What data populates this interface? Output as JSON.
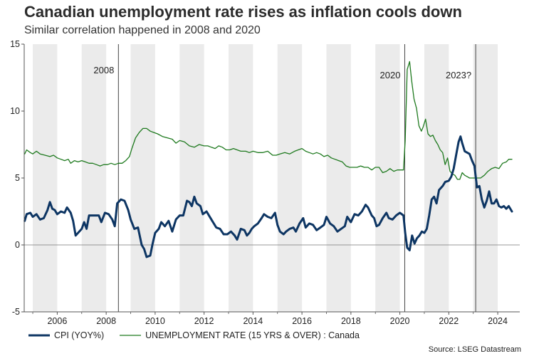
{
  "title": "Canadian unemployment rate rises as inflation cools down",
  "subtitle": "Similar correlation happened in 2008 and 2020",
  "source": "Source: LSEG Datastream",
  "colors": {
    "cpi": "#0d3563",
    "unemployment": "#1f7a1f",
    "band": "#ebebeb",
    "axis": "#555555"
  },
  "chart_data": {
    "type": "line",
    "xlim": [
      2004.65,
      2024.9
    ],
    "ylim": [
      -5,
      15
    ],
    "yticks": [
      -5,
      0,
      5,
      10,
      15
    ],
    "xticks": [
      2006,
      2008,
      2010,
      2012,
      2014,
      2016,
      2018,
      2020,
      2022,
      2024
    ],
    "ytick_labels": [
      "-5",
      "0",
      "5",
      "10",
      "15"
    ],
    "xtick_labels": [
      "2006",
      "2008",
      "2010",
      "2012",
      "2014",
      "2016",
      "2018",
      "2020",
      "2022",
      "2024"
    ],
    "vlines": [
      {
        "x": 2008.5,
        "label": "2008"
      },
      {
        "x": 2020.2,
        "label": "2020"
      },
      {
        "x": 2023.1,
        "label": "2023?"
      }
    ],
    "series": [
      {
        "name": "CPI (YOY%)",
        "points": [
          [
            2004.67,
            1.8
          ],
          [
            2004.75,
            2.3
          ],
          [
            2004.9,
            2.4
          ],
          [
            2005.0,
            2.1
          ],
          [
            2005.15,
            2.3
          ],
          [
            2005.3,
            1.9
          ],
          [
            2005.45,
            2.0
          ],
          [
            2005.6,
            2.6
          ],
          [
            2005.7,
            3.2
          ],
          [
            2005.8,
            2.7
          ],
          [
            2005.9,
            2.6
          ],
          [
            2006.0,
            2.3
          ],
          [
            2006.15,
            2.5
          ],
          [
            2006.3,
            2.4
          ],
          [
            2006.4,
            2.8
          ],
          [
            2006.55,
            2.4
          ],
          [
            2006.65,
            1.8
          ],
          [
            2006.75,
            0.7
          ],
          [
            2006.85,
            0.9
          ],
          [
            2007.0,
            1.2
          ],
          [
            2007.1,
            1.7
          ],
          [
            2007.2,
            1.2
          ],
          [
            2007.3,
            2.2
          ],
          [
            2007.5,
            2.2
          ],
          [
            2007.7,
            2.2
          ],
          [
            2007.8,
            1.7
          ],
          [
            2007.95,
            2.4
          ],
          [
            2008.1,
            2.3
          ],
          [
            2008.25,
            1.9
          ],
          [
            2008.35,
            1.4
          ],
          [
            2008.45,
            3.1
          ],
          [
            2008.6,
            3.4
          ],
          [
            2008.75,
            3.3
          ],
          [
            2008.9,
            2.6
          ],
          [
            2009.0,
            1.9
          ],
          [
            2009.15,
            1.2
          ],
          [
            2009.3,
            1.3
          ],
          [
            2009.45,
            0.0
          ],
          [
            2009.55,
            -0.3
          ],
          [
            2009.65,
            -0.9
          ],
          [
            2009.8,
            -0.8
          ],
          [
            2009.9,
            0.1
          ],
          [
            2010.0,
            0.9
          ],
          [
            2010.15,
            1.2
          ],
          [
            2010.25,
            1.7
          ],
          [
            2010.4,
            1.4
          ],
          [
            2010.55,
            1.8
          ],
          [
            2010.7,
            1.0
          ],
          [
            2010.85,
            1.9
          ],
          [
            2011.0,
            2.2
          ],
          [
            2011.15,
            2.2
          ],
          [
            2011.3,
            3.3
          ],
          [
            2011.4,
            3.2
          ],
          [
            2011.5,
            2.9
          ],
          [
            2011.6,
            3.6
          ],
          [
            2011.7,
            3.1
          ],
          [
            2011.85,
            2.9
          ],
          [
            2011.95,
            2.3
          ],
          [
            2012.1,
            2.5
          ],
          [
            2012.3,
            1.9
          ],
          [
            2012.5,
            1.3
          ],
          [
            2012.65,
            1.2
          ],
          [
            2012.8,
            0.8
          ],
          [
            2012.95,
            0.8
          ],
          [
            2013.1,
            1.0
          ],
          [
            2013.25,
            0.7
          ],
          [
            2013.35,
            0.4
          ],
          [
            2013.5,
            1.2
          ],
          [
            2013.65,
            1.1
          ],
          [
            2013.75,
            0.7
          ],
          [
            2013.85,
            0.9
          ],
          [
            2013.95,
            1.2
          ],
          [
            2014.05,
            1.4
          ],
          [
            2014.2,
            1.6
          ],
          [
            2014.35,
            2.0
          ],
          [
            2014.45,
            2.3
          ],
          [
            2014.6,
            2.1
          ],
          [
            2014.75,
            2.0
          ],
          [
            2014.9,
            2.4
          ],
          [
            2015.0,
            1.5
          ],
          [
            2015.1,
            1.0
          ],
          [
            2015.25,
            0.8
          ],
          [
            2015.35,
            1.0
          ],
          [
            2015.5,
            1.2
          ],
          [
            2015.65,
            1.3
          ],
          [
            2015.75,
            1.0
          ],
          [
            2015.9,
            1.6
          ],
          [
            2016.05,
            2.0
          ],
          [
            2016.15,
            1.3
          ],
          [
            2016.3,
            1.6
          ],
          [
            2016.45,
            1.5
          ],
          [
            2016.6,
            1.1
          ],
          [
            2016.75,
            1.3
          ],
          [
            2016.9,
            1.5
          ],
          [
            2017.0,
            2.1
          ],
          [
            2017.15,
            1.6
          ],
          [
            2017.3,
            1.4
          ],
          [
            2017.45,
            1.0
          ],
          [
            2017.6,
            1.2
          ],
          [
            2017.75,
            1.4
          ],
          [
            2017.85,
            2.1
          ],
          [
            2018.0,
            1.7
          ],
          [
            2018.15,
            2.3
          ],
          [
            2018.3,
            2.2
          ],
          [
            2018.45,
            2.5
          ],
          [
            2018.6,
            3.0
          ],
          [
            2018.7,
            2.8
          ],
          [
            2018.85,
            2.2
          ],
          [
            2018.95,
            2.0
          ],
          [
            2019.05,
            1.4
          ],
          [
            2019.15,
            1.5
          ],
          [
            2019.3,
            2.0
          ],
          [
            2019.45,
            2.4
          ],
          [
            2019.55,
            2.0
          ],
          [
            2019.7,
            1.9
          ],
          [
            2019.85,
            2.2
          ],
          [
            2020.0,
            2.4
          ],
          [
            2020.15,
            2.2
          ],
          [
            2020.22,
            0.9
          ],
          [
            2020.3,
            -0.2
          ],
          [
            2020.4,
            -0.4
          ],
          [
            2020.5,
            0.7
          ],
          [
            2020.6,
            0.1
          ],
          [
            2020.7,
            0.5
          ],
          [
            2020.8,
            0.7
          ],
          [
            2020.9,
            1.0
          ],
          [
            2021.0,
            0.9
          ],
          [
            2021.1,
            1.2
          ],
          [
            2021.2,
            2.2
          ],
          [
            2021.3,
            3.4
          ],
          [
            2021.4,
            3.6
          ],
          [
            2021.5,
            3.1
          ],
          [
            2021.6,
            4.1
          ],
          [
            2021.75,
            4.4
          ],
          [
            2021.85,
            4.7
          ],
          [
            2022.0,
            4.8
          ],
          [
            2022.1,
            5.1
          ],
          [
            2022.2,
            5.7
          ],
          [
            2022.3,
            6.7
          ],
          [
            2022.4,
            7.7
          ],
          [
            2022.48,
            8.1
          ],
          [
            2022.55,
            7.6
          ],
          [
            2022.65,
            7.0
          ],
          [
            2022.75,
            6.9
          ],
          [
            2022.85,
            6.8
          ],
          [
            2022.95,
            6.3
          ],
          [
            2023.05,
            5.9
          ],
          [
            2023.15,
            4.3
          ],
          [
            2023.25,
            4.4
          ],
          [
            2023.35,
            3.4
          ],
          [
            2023.45,
            2.8
          ],
          [
            2023.55,
            3.3
          ],
          [
            2023.65,
            4.0
          ],
          [
            2023.75,
            3.1
          ],
          [
            2023.85,
            3.1
          ],
          [
            2023.95,
            3.4
          ],
          [
            2024.05,
            2.9
          ],
          [
            2024.15,
            2.8
          ],
          [
            2024.25,
            2.9
          ],
          [
            2024.35,
            2.7
          ],
          [
            2024.45,
            2.9
          ],
          [
            2024.58,
            2.5
          ]
        ]
      },
      {
        "name": "UNEMPLOYMENT RATE (15 YRS & OVER) : Canada",
        "points": [
          [
            2004.67,
            6.8
          ],
          [
            2004.75,
            7.1
          ],
          [
            2004.9,
            6.9
          ],
          [
            2005.0,
            6.8
          ],
          [
            2005.15,
            7.0
          ],
          [
            2005.3,
            6.8
          ],
          [
            2005.5,
            6.7
          ],
          [
            2005.7,
            6.6
          ],
          [
            2005.85,
            6.7
          ],
          [
            2006.0,
            6.5
          ],
          [
            2006.15,
            6.4
          ],
          [
            2006.3,
            6.3
          ],
          [
            2006.45,
            6.4
          ],
          [
            2006.55,
            6.1
          ],
          [
            2006.7,
            6.3
          ],
          [
            2006.85,
            6.2
          ],
          [
            2007.0,
            6.3
          ],
          [
            2007.15,
            6.2
          ],
          [
            2007.3,
            6.1
          ],
          [
            2007.45,
            6.1
          ],
          [
            2007.6,
            6.0
          ],
          [
            2007.75,
            5.9
          ],
          [
            2007.9,
            6.0
          ],
          [
            2008.05,
            6.0
          ],
          [
            2008.2,
            6.1
          ],
          [
            2008.35,
            6.0
          ],
          [
            2008.5,
            6.1
          ],
          [
            2008.65,
            6.1
          ],
          [
            2008.8,
            6.3
          ],
          [
            2008.95,
            6.6
          ],
          [
            2009.05,
            7.2
          ],
          [
            2009.2,
            8.0
          ],
          [
            2009.35,
            8.4
          ],
          [
            2009.5,
            8.7
          ],
          [
            2009.65,
            8.7
          ],
          [
            2009.8,
            8.5
          ],
          [
            2009.95,
            8.4
          ],
          [
            2010.1,
            8.3
          ],
          [
            2010.3,
            8.1
          ],
          [
            2010.5,
            8.0
          ],
          [
            2010.7,
            7.9
          ],
          [
            2010.85,
            7.6
          ],
          [
            2011.0,
            7.8
          ],
          [
            2011.2,
            7.7
          ],
          [
            2011.4,
            7.4
          ],
          [
            2011.6,
            7.3
          ],
          [
            2011.8,
            7.5
          ],
          [
            2012.0,
            7.4
          ],
          [
            2012.15,
            7.4
          ],
          [
            2012.3,
            7.3
          ],
          [
            2012.45,
            7.2
          ],
          [
            2012.6,
            7.4
          ],
          [
            2012.75,
            7.3
          ],
          [
            2012.9,
            7.1
          ],
          [
            2013.05,
            7.1
          ],
          [
            2013.2,
            7.2
          ],
          [
            2013.35,
            7.1
          ],
          [
            2013.5,
            7.0
          ],
          [
            2013.7,
            7.0
          ],
          [
            2013.85,
            6.9
          ],
          [
            2014.0,
            7.0
          ],
          [
            2014.2,
            6.9
          ],
          [
            2014.4,
            6.9
          ],
          [
            2014.6,
            7.0
          ],
          [
            2014.8,
            6.7
          ],
          [
            2014.95,
            6.7
          ],
          [
            2015.1,
            6.8
          ],
          [
            2015.3,
            6.9
          ],
          [
            2015.5,
            6.8
          ],
          [
            2015.7,
            7.0
          ],
          [
            2015.85,
            7.1
          ],
          [
            2016.0,
            7.2
          ],
          [
            2016.15,
            7.0
          ],
          [
            2016.3,
            6.9
          ],
          [
            2016.45,
            6.8
          ],
          [
            2016.6,
            6.9
          ],
          [
            2016.75,
            6.8
          ],
          [
            2016.9,
            6.6
          ],
          [
            2017.05,
            6.7
          ],
          [
            2017.2,
            6.5
          ],
          [
            2017.35,
            6.4
          ],
          [
            2017.5,
            6.3
          ],
          [
            2017.65,
            6.2
          ],
          [
            2017.8,
            5.9
          ],
          [
            2017.95,
            5.8
          ],
          [
            2018.1,
            5.8
          ],
          [
            2018.25,
            5.8
          ],
          [
            2018.4,
            5.9
          ],
          [
            2018.55,
            5.8
          ],
          [
            2018.7,
            5.8
          ],
          [
            2018.85,
            5.6
          ],
          [
            2019.0,
            5.8
          ],
          [
            2019.15,
            5.8
          ],
          [
            2019.3,
            5.4
          ],
          [
            2019.45,
            5.5
          ],
          [
            2019.6,
            5.7
          ],
          [
            2019.75,
            5.5
          ],
          [
            2019.9,
            5.6
          ],
          [
            2020.05,
            5.6
          ],
          [
            2020.15,
            5.6
          ],
          [
            2020.22,
            7.8
          ],
          [
            2020.3,
            13.1
          ],
          [
            2020.4,
            13.7
          ],
          [
            2020.48,
            12.3
          ],
          [
            2020.58,
            10.9
          ],
          [
            2020.68,
            10.2
          ],
          [
            2020.78,
            8.9
          ],
          [
            2020.88,
            8.5
          ],
          [
            2020.95,
            8.8
          ],
          [
            2021.05,
            9.4
          ],
          [
            2021.15,
            8.3
          ],
          [
            2021.25,
            8.1
          ],
          [
            2021.35,
            8.2
          ],
          [
            2021.45,
            7.8
          ],
          [
            2021.55,
            7.5
          ],
          [
            2021.65,
            7.1
          ],
          [
            2021.75,
            6.9
          ],
          [
            2021.85,
            6.0
          ],
          [
            2021.95,
            6.5
          ],
          [
            2022.05,
            5.5
          ],
          [
            2022.15,
            5.3
          ],
          [
            2022.25,
            5.2
          ],
          [
            2022.35,
            4.9
          ],
          [
            2022.45,
            4.9
          ],
          [
            2022.55,
            5.4
          ],
          [
            2022.65,
            5.2
          ],
          [
            2022.75,
            5.1
          ],
          [
            2022.85,
            5.0
          ],
          [
            2022.95,
            5.0
          ],
          [
            2023.05,
            5.0
          ],
          [
            2023.15,
            5.0
          ],
          [
            2023.3,
            5.0
          ],
          [
            2023.45,
            5.2
          ],
          [
            2023.6,
            5.5
          ],
          [
            2023.75,
            5.7
          ],
          [
            2023.9,
            5.8
          ],
          [
            2024.05,
            5.7
          ],
          [
            2024.2,
            6.1
          ],
          [
            2024.35,
            6.2
          ],
          [
            2024.45,
            6.4
          ],
          [
            2024.58,
            6.4
          ]
        ]
      }
    ]
  }
}
